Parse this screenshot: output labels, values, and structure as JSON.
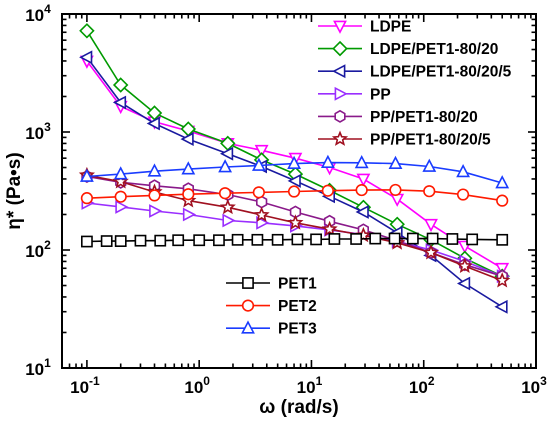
{
  "chart_data": {
    "type": "line",
    "title": "",
    "xlabel": "ω (rad/s)",
    "ylabel": "η* (Pa•s)",
    "xscale": "log",
    "yscale": "log",
    "xlim": [
      0.06,
      1000
    ],
    "ylim": [
      10,
      10000
    ],
    "x_ticks": [
      {
        "value": 0.1,
        "base": "10",
        "exp": "-1"
      },
      {
        "value": 1,
        "base": "10",
        "exp": "0"
      },
      {
        "value": 10,
        "base": "10",
        "exp": "1"
      },
      {
        "value": 100,
        "base": "10",
        "exp": "2"
      },
      {
        "value": 1000,
        "base": "10",
        "exp": "3"
      }
    ],
    "y_ticks": [
      {
        "value": 10,
        "base": "10",
        "exp": "1"
      },
      {
        "value": 100,
        "base": "10",
        "exp": "2"
      },
      {
        "value": 1000,
        "base": "10",
        "exp": "3"
      },
      {
        "value": 10000,
        "base": "10",
        "exp": "4"
      }
    ],
    "grid": false,
    "legend_placement": [
      "top-right",
      "bottom-center"
    ],
    "series": [
      {
        "name": "LDPE",
        "color": "#ff00ff",
        "marker": "triangle-down",
        "legend_group": "top",
        "x": [
          0.1,
          0.2,
          0.4,
          0.8,
          1.8,
          3.6,
          7.2,
          14.5,
          29,
          58,
          116,
          232,
          500
        ],
        "y": [
          4000,
          1650,
          1220,
          1020,
          800,
          700,
          600,
          500,
          400,
          270,
          165,
          108,
          70
        ]
      },
      {
        "name": "LDPE/PET1-80/20",
        "color": "#009a00",
        "marker": "diamond",
        "legend_group": "top",
        "x": [
          0.1,
          0.2,
          0.4,
          0.8,
          1.8,
          3.6,
          7.2,
          14.5,
          29,
          58,
          116,
          232,
          500
        ],
        "y": [
          7200,
          2500,
          1450,
          1060,
          800,
          580,
          440,
          320,
          230,
          165,
          122,
          85,
          60
        ]
      },
      {
        "name": "LDPE/PET1-80/20/5",
        "color": "#1a1aa0",
        "marker": "triangle-left",
        "legend_group": "top",
        "x": [
          0.1,
          0.2,
          0.4,
          0.8,
          1.8,
          3.6,
          7.2,
          14.5,
          29,
          58,
          116,
          232,
          500
        ],
        "y": [
          4300,
          1780,
          1180,
          870,
          655,
          510,
          385,
          285,
          210,
          140,
          90,
          52,
          33
        ]
      },
      {
        "name": "PP",
        "color": "#9a2eff",
        "marker": "triangle-right",
        "legend_group": "top",
        "x": [
          0.1,
          0.2,
          0.4,
          0.8,
          1.8,
          3.6,
          7.2,
          14.5,
          29,
          58,
          116,
          232,
          500
        ],
        "y": [
          250,
          232,
          214,
          200,
          178,
          170,
          160,
          148,
          135,
          118,
          100,
          80,
          60
        ]
      },
      {
        "name": "PP/PET1-80/20",
        "color": "#8a1a8a",
        "marker": "hexagon",
        "legend_group": "top",
        "x": [
          0.1,
          0.2,
          0.4,
          0.8,
          1.8,
          3.6,
          7.2,
          14.5,
          29,
          58,
          116,
          232,
          500
        ],
        "y": [
          420,
          375,
          350,
          330,
          295,
          255,
          210,
          175,
          148,
          120,
          95,
          75,
          60
        ]
      },
      {
        "name": "PP/PET1-80/20/5",
        "color": "#a01020",
        "marker": "star",
        "legend_group": "top",
        "x": [
          0.1,
          0.2,
          0.4,
          0.8,
          1.8,
          3.6,
          7.2,
          14.5,
          29,
          58,
          116,
          232,
          500
        ],
        "y": [
          430,
          380,
          310,
          262,
          230,
          198,
          170,
          150,
          133,
          115,
          95,
          73,
          55
        ]
      },
      {
        "name": "PET1",
        "color": "#000000",
        "marker": "square",
        "legend_group": "bottom",
        "x": [
          0.1,
          0.15,
          0.2,
          0.3,
          0.45,
          0.65,
          1,
          1.5,
          2.2,
          3.3,
          5,
          7.5,
          11,
          16,
          25,
          37,
          55,
          80,
          120,
          180,
          270,
          500
        ],
        "y": [
          118,
          119,
          119,
          120,
          120,
          121,
          121,
          121,
          122,
          122,
          122,
          123,
          123,
          124,
          124,
          125,
          125,
          125,
          125,
          124,
          123,
          122
        ]
      },
      {
        "name": "PET2",
        "color": "#ff1a00",
        "marker": "circle",
        "legend_group": "bottom",
        "x": [
          0.1,
          0.2,
          0.4,
          0.8,
          1.7,
          3.4,
          7,
          14,
          28,
          56,
          112,
          224,
          500
        ],
        "y": [
          275,
          283,
          290,
          297,
          303,
          308,
          313,
          318,
          322,
          323,
          315,
          295,
          262
        ]
      },
      {
        "name": "PET3",
        "color": "#1a3cff",
        "marker": "triangle-up",
        "legend_group": "bottom",
        "x": [
          0.1,
          0.2,
          0.4,
          0.8,
          1.7,
          3.4,
          7,
          14,
          28,
          56,
          112,
          224,
          500
        ],
        "y": [
          420,
          440,
          465,
          485,
          505,
          520,
          540,
          550,
          548,
          540,
          510,
          460,
          370
        ]
      }
    ]
  }
}
